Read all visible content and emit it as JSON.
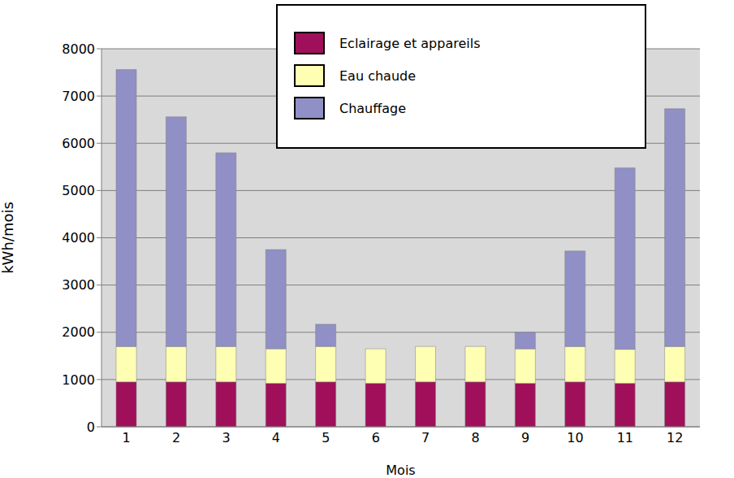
{
  "chart_data": {
    "type": "bar",
    "x_label": "Mois",
    "y_label": "kWh/mois",
    "categories": [
      "1",
      "2",
      "3",
      "4",
      "5",
      "6",
      "7",
      "8",
      "9",
      "10",
      "11",
      "12"
    ],
    "series": [
      {
        "name": "Eclairage et appareils",
        "color": "#a0105a",
        "values": [
          950,
          950,
          950,
          920,
          950,
          920,
          950,
          950,
          920,
          950,
          920,
          950
        ]
      },
      {
        "name": "Eau chaude",
        "color": "#ffffb3",
        "values": [
          750,
          750,
          750,
          730,
          750,
          730,
          750,
          750,
          730,
          750,
          720,
          750
        ]
      },
      {
        "name": "Chauffage",
        "color": "#9090c6",
        "values": [
          5860,
          4860,
          4100,
          2100,
          470,
          0,
          0,
          0,
          350,
          2020,
          3840,
          5030
        ]
      }
    ],
    "ylim": [
      0,
      8000
    ],
    "yticks": [
      0,
      1000,
      2000,
      3000,
      4000,
      5000,
      6000,
      7000,
      8000
    ],
    "grid": true,
    "stacked": true,
    "legend": "upper right"
  }
}
